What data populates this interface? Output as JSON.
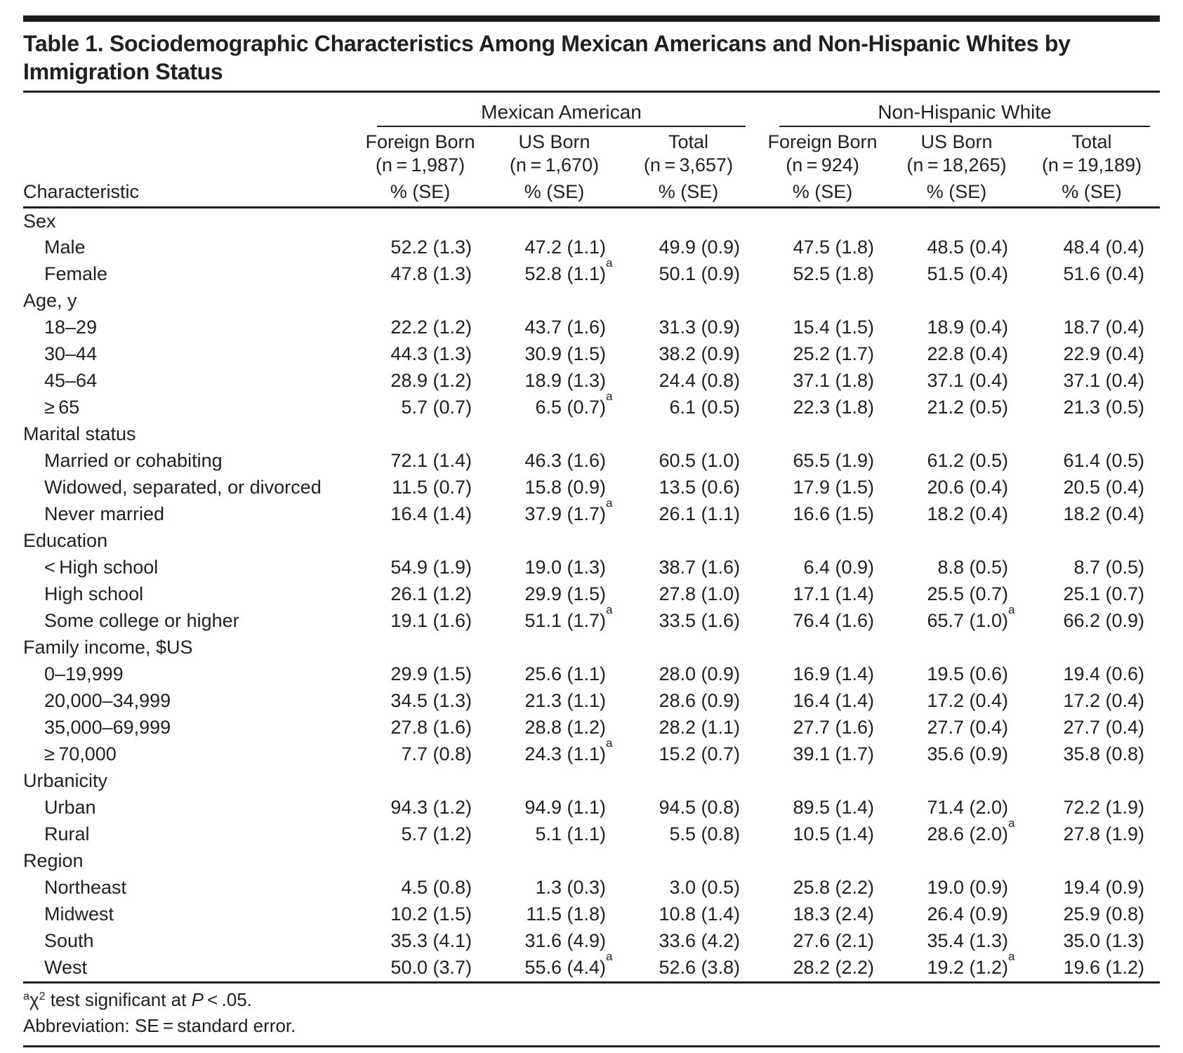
{
  "page": {
    "title": "Table 1. Sociodemographic Characteristics Among Mexican Americans and Non-Hispanic Whites by Immigration Status"
  },
  "table": {
    "characteristic_label": "Characteristic",
    "unit_label": "% (SE)",
    "groups": [
      {
        "label": "Mexican American",
        "columns": [
          {
            "name": "Foreign Born",
            "n": "(n = 1,987)"
          },
          {
            "name": "US Born",
            "n": "(n = 1,670)"
          },
          {
            "name": "Total",
            "n": "(n = 3,657)"
          }
        ]
      },
      {
        "label": "Non-Hispanic White",
        "columns": [
          {
            "name": "Foreign Born",
            "n": "(n = 924)"
          },
          {
            "name": "US Born",
            "n": "(n = 18,265)"
          },
          {
            "name": "Total",
            "n": "(n = 19,189)"
          }
        ]
      }
    ],
    "sections": [
      {
        "label": "Sex",
        "rows": [
          {
            "label": "Male",
            "values": [
              "52.2 (1.3)",
              "47.2 (1.1)",
              "49.9 (0.9)",
              "47.5 (1.8)",
              "48.5 (0.4)",
              "48.4 (0.4)"
            ]
          },
          {
            "label": "Female",
            "values": [
              "47.8 (1.3)",
              "52.8 (1.1)^a",
              "50.1 (0.9)",
              "52.5 (1.8)",
              "51.5 (0.4)",
              "51.6 (0.4)"
            ]
          }
        ]
      },
      {
        "label": "Age, y",
        "rows": [
          {
            "label": "18–29",
            "values": [
              "22.2 (1.2)",
              "43.7 (1.6)",
              "31.3 (0.9)",
              "15.4 (1.5)",
              "18.9 (0.4)",
              "18.7 (0.4)"
            ]
          },
          {
            "label": "30–44",
            "values": [
              "44.3 (1.3)",
              "30.9 (1.5)",
              "38.2 (0.9)",
              "25.2 (1.7)",
              "22.8 (0.4)",
              "22.9 (0.4)"
            ]
          },
          {
            "label": "45–64",
            "values": [
              "28.9 (1.2)",
              "18.9 (1.3)",
              "24.4 (0.8)",
              "37.1 (1.8)",
              "37.1 (0.4)",
              "37.1 (0.4)"
            ]
          },
          {
            "label": "≥ 65",
            "values": [
              "5.7 (0.7)",
              "6.5 (0.7)^a",
              "6.1 (0.5)",
              "22.3 (1.8)",
              "21.2 (0.5)",
              "21.3 (0.5)"
            ]
          }
        ]
      },
      {
        "label": "Marital status",
        "rows": [
          {
            "label": "Married or cohabiting",
            "values": [
              "72.1 (1.4)",
              "46.3 (1.6)",
              "60.5 (1.0)",
              "65.5 (1.9)",
              "61.2 (0.5)",
              "61.4 (0.5)"
            ]
          },
          {
            "label": "Widowed, separated, or divorced",
            "values": [
              "11.5 (0.7)",
              "15.8 (0.9)",
              "13.5 (0.6)",
              "17.9 (1.5)",
              "20.6 (0.4)",
              "20.5 (0.4)"
            ]
          },
          {
            "label": "Never married",
            "values": [
              "16.4 (1.4)",
              "37.9 (1.7)^a",
              "26.1 (1.1)",
              "16.6 (1.5)",
              "18.2 (0.4)",
              "18.2 (0.4)"
            ]
          }
        ]
      },
      {
        "label": "Education",
        "rows": [
          {
            "label": "< High school",
            "values": [
              "54.9 (1.9)",
              "19.0 (1.3)",
              "38.7 (1.6)",
              "6.4 (0.9)",
              "8.8 (0.5)",
              "8.7 (0.5)"
            ]
          },
          {
            "label": "High school",
            "values": [
              "26.1 (1.2)",
              "29.9 (1.5)",
              "27.8 (1.0)",
              "17.1 (1.4)",
              "25.5 (0.7)",
              "25.1 (0.7)"
            ]
          },
          {
            "label": "Some college or higher",
            "values": [
              "19.1 (1.6)",
              "51.1 (1.7)^a",
              "33.5 (1.6)",
              "76.4 (1.6)",
              "65.7 (1.0)^a",
              "66.2 (0.9)"
            ]
          }
        ]
      },
      {
        "label": "Family income, $US",
        "rows": [
          {
            "label": "0–19,999",
            "values": [
              "29.9 (1.5)",
              "25.6 (1.1)",
              "28.0 (0.9)",
              "16.9 (1.4)",
              "19.5 (0.6)",
              "19.4 (0.6)"
            ]
          },
          {
            "label": "20,000–34,999",
            "values": [
              "34.5 (1.3)",
              "21.3 (1.1)",
              "28.6 (0.9)",
              "16.4 (1.4)",
              "17.2 (0.4)",
              "17.2 (0.4)"
            ]
          },
          {
            "label": "35,000–69,999",
            "values": [
              "27.8 (1.6)",
              "28.8 (1.2)",
              "28.2 (1.1)",
              "27.7 (1.6)",
              "27.7 (0.4)",
              "27.7 (0.4)"
            ]
          },
          {
            "label": "≥ 70,000",
            "values": [
              "7.7 (0.8)",
              "24.3 (1.1)^a",
              "15.2 (0.7)",
              "39.1 (1.7)",
              "35.6 (0.9)",
              "35.8 (0.8)"
            ]
          }
        ]
      },
      {
        "label": "Urbanicity",
        "rows": [
          {
            "label": "Urban",
            "values": [
              "94.3 (1.2)",
              "94.9 (1.1)",
              "94.5 (0.8)",
              "89.5 (1.4)",
              "71.4 (2.0)",
              "72.2 (1.9)"
            ]
          },
          {
            "label": "Rural",
            "values": [
              "5.7 (1.2)",
              "5.1 (1.1)",
              "5.5 (0.8)",
              "10.5 (1.4)",
              "28.6 (2.0)^a",
              "27.8 (1.9)"
            ]
          }
        ]
      },
      {
        "label": "Region",
        "rows": [
          {
            "label": "Northeast",
            "values": [
              "4.5 (0.8)",
              "1.3 (0.3)",
              "3.0 (0.5)",
              "25.8 (2.2)",
              "19.0 (0.9)",
              "19.4 (0.9)"
            ]
          },
          {
            "label": "Midwest",
            "values": [
              "10.2 (1.5)",
              "11.5 (1.8)",
              "10.8 (1.4)",
              "18.3 (2.4)",
              "26.4 (0.9)",
              "25.9 (0.8)"
            ]
          },
          {
            "label": "South",
            "values": [
              "35.3 (4.1)",
              "31.6 (4.9)",
              "33.6 (4.2)",
              "27.6 (2.1)",
              "35.4 (1.3)",
              "35.0 (1.3)"
            ]
          },
          {
            "label": "West",
            "values": [
              "50.0 (3.7)",
              "55.6 (4.4)^a",
              "52.6 (3.8)",
              "28.2 (2.2)",
              "19.2 (1.2)^a",
              "19.6 (1.2)"
            ]
          }
        ]
      }
    ]
  },
  "footnotes": {
    "significance_segments": [
      {
        "text": "a",
        "style": "sup"
      },
      {
        "text": "χ"
      },
      {
        "text": "2",
        "style": "sup"
      },
      {
        "text": " test significant at "
      },
      {
        "text": "P",
        "style": "italic"
      },
      {
        "text": " < .05."
      }
    ],
    "abbreviation": "Abbreviation: SE = standard error."
  }
}
